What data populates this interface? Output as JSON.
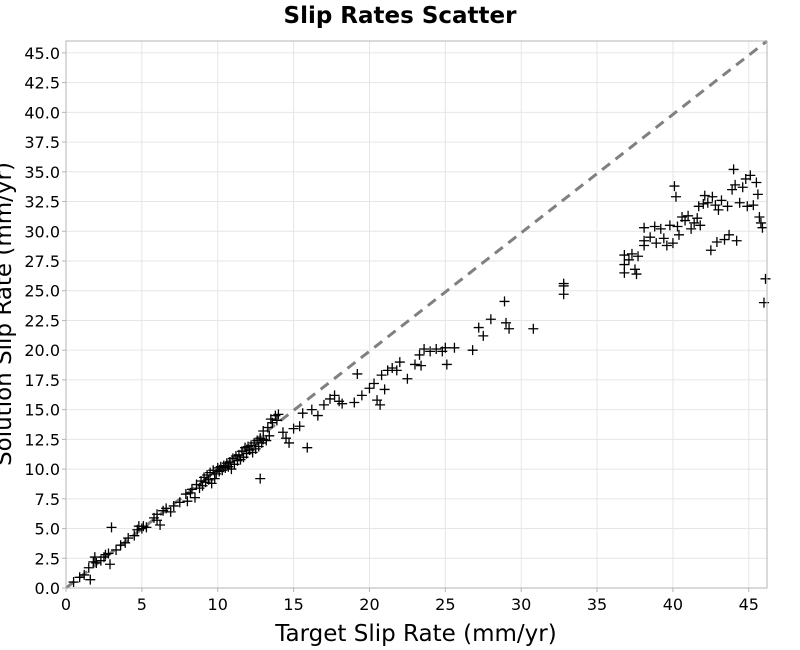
{
  "chart_data": {
    "type": "scatter",
    "title": "Slip Rates Scatter",
    "xlabel": "Target Slip Rate (mm/yr)",
    "ylabel": "Solution Slip Rate (mm/yr)",
    "xlim": [
      0,
      46.2
    ],
    "ylim": [
      0,
      46
    ],
    "x_ticks": [
      "0",
      "5",
      "10",
      "15",
      "20",
      "25",
      "30",
      "35",
      "40",
      "45"
    ],
    "y_ticks": [
      "0.0",
      "2.5",
      "5.0",
      "7.5",
      "10.0",
      "12.5",
      "15.0",
      "17.5",
      "20.0",
      "22.5",
      "25.0",
      "27.5",
      "30.0",
      "32.5",
      "35.0",
      "37.5",
      "40.0",
      "42.5",
      "45.0"
    ],
    "grid": true,
    "marker": "plus",
    "reference_line": {
      "style": "dashed",
      "color": "#808080",
      "from": [
        0,
        0
      ],
      "to": [
        46.2,
        46
      ]
    },
    "points": [
      [
        0.5,
        0.5
      ],
      [
        0.9,
        0.9
      ],
      [
        1.2,
        1.1
      ],
      [
        1.5,
        1.7
      ],
      [
        1.6,
        0.7
      ],
      [
        1.8,
        2.2
      ],
      [
        1.9,
        2.6
      ],
      [
        2.0,
        2.1
      ],
      [
        2.3,
        2.3
      ],
      [
        2.5,
        2.6
      ],
      [
        2.6,
        2.8
      ],
      [
        2.8,
        2.9
      ],
      [
        2.9,
        2.0
      ],
      [
        3.0,
        5.1
      ],
      [
        3.3,
        3.2
      ],
      [
        3.6,
        3.6
      ],
      [
        3.9,
        3.8
      ],
      [
        4.1,
        4.2
      ],
      [
        4.5,
        4.4
      ],
      [
        4.7,
        4.9
      ],
      [
        4.8,
        5.2
      ],
      [
        5.0,
        5.0
      ],
      [
        5.1,
        5.2
      ],
      [
        5.3,
        5.1
      ],
      [
        5.8,
        5.9
      ],
      [
        6.0,
        6.2
      ],
      [
        6.0,
        5.7
      ],
      [
        6.2,
        5.3
      ],
      [
        6.4,
        6.5
      ],
      [
        6.6,
        6.7
      ],
      [
        6.9,
        6.4
      ],
      [
        7.1,
        6.9
      ],
      [
        7.5,
        7.2
      ],
      [
        7.9,
        7.9
      ],
      [
        8.0,
        7.3
      ],
      [
        8.2,
        8.0
      ],
      [
        8.3,
        8.3
      ],
      [
        8.5,
        7.6
      ],
      [
        8.6,
        8.7
      ],
      [
        8.8,
        8.4
      ],
      [
        8.9,
        9.0
      ],
      [
        9.0,
        8.6
      ],
      [
        9.1,
        9.3
      ],
      [
        9.2,
        8.9
      ],
      [
        9.3,
        9.5
      ],
      [
        9.4,
        9.1
      ],
      [
        9.5,
        9.7
      ],
      [
        9.6,
        8.8
      ],
      [
        9.7,
        9.9
      ],
      [
        9.8,
        9.2
      ],
      [
        9.9,
        9.6
      ],
      [
        10.0,
        10.1
      ],
      [
        10.1,
        9.8
      ],
      [
        10.2,
        10.2
      ],
      [
        10.3,
        9.9
      ],
      [
        10.4,
        10.3
      ],
      [
        10.5,
        10.1
      ],
      [
        10.6,
        10.5
      ],
      [
        10.7,
        10.2
      ],
      [
        10.8,
        10.6
      ],
      [
        10.9,
        10.0
      ],
      [
        11.0,
        10.9
      ],
      [
        11.1,
        10.4
      ],
      [
        11.2,
        11.1
      ],
      [
        11.3,
        10.7
      ],
      [
        11.4,
        11.2
      ],
      [
        11.5,
        10.8
      ],
      [
        11.6,
        11.5
      ],
      [
        11.7,
        11.0
      ],
      [
        11.8,
        11.8
      ],
      [
        11.9,
        11.3
      ],
      [
        12.0,
        11.9
      ],
      [
        12.1,
        11.6
      ],
      [
        12.2,
        12.0
      ],
      [
        12.3,
        11.4
      ],
      [
        12.4,
        12.2
      ],
      [
        12.5,
        11.7
      ],
      [
        12.6,
        12.4
      ],
      [
        12.7,
        11.9
      ],
      [
        12.8,
        12.6
      ],
      [
        12.9,
        12.2
      ],
      [
        13.0,
        12.5
      ],
      [
        12.8,
        9.2
      ],
      [
        13.0,
        13.2
      ],
      [
        13.2,
        12.4
      ],
      [
        13.3,
        13.5
      ],
      [
        13.4,
        12.8
      ],
      [
        13.5,
        14.2
      ],
      [
        13.6,
        13.9
      ],
      [
        13.8,
        14.5
      ],
      [
        13.9,
        14.1
      ],
      [
        14.0,
        14.6
      ],
      [
        14.3,
        13.1
      ],
      [
        14.5,
        12.6
      ],
      [
        14.7,
        12.2
      ],
      [
        15.0,
        13.4
      ],
      [
        15.4,
        13.6
      ],
      [
        15.6,
        14.7
      ],
      [
        15.9,
        11.8
      ],
      [
        16.2,
        15.0
      ],
      [
        16.6,
        14.5
      ],
      [
        17.0,
        15.4
      ],
      [
        17.4,
        15.9
      ],
      [
        17.7,
        16.2
      ],
      [
        18.0,
        15.7
      ],
      [
        18.2,
        15.5
      ],
      [
        19.0,
        15.6
      ],
      [
        19.2,
        18.0
      ],
      [
        19.5,
        16.2
      ],
      [
        20.0,
        16.8
      ],
      [
        20.3,
        17.2
      ],
      [
        20.5,
        15.8
      ],
      [
        20.7,
        15.4
      ],
      [
        20.8,
        17.9
      ],
      [
        21.0,
        16.7
      ],
      [
        21.2,
        18.3
      ],
      [
        21.5,
        18.5
      ],
      [
        21.8,
        18.3
      ],
      [
        22.0,
        19.0
      ],
      [
        22.5,
        17.6
      ],
      [
        23.0,
        18.8
      ],
      [
        23.3,
        19.6
      ],
      [
        23.4,
        18.7
      ],
      [
        23.6,
        20.1
      ],
      [
        24.0,
        19.9
      ],
      [
        24.4,
        20.1
      ],
      [
        24.8,
        19.9
      ],
      [
        25.0,
        20.2
      ],
      [
        25.1,
        18.8
      ],
      [
        25.6,
        20.2
      ],
      [
        26.8,
        20.0
      ],
      [
        27.2,
        21.9
      ],
      [
        27.5,
        21.2
      ],
      [
        28.0,
        22.6
      ],
      [
        28.9,
        24.1
      ],
      [
        29.0,
        22.3
      ],
      [
        29.2,
        21.8
      ],
      [
        30.8,
        21.8
      ],
      [
        32.8,
        25.4
      ],
      [
        32.8,
        24.7
      ],
      [
        32.8,
        25.6
      ],
      [
        36.8,
        27.2
      ],
      [
        36.8,
        28.0
      ],
      [
        36.8,
        26.5
      ],
      [
        37.1,
        27.6
      ],
      [
        37.3,
        28.1
      ],
      [
        37.5,
        26.8
      ],
      [
        37.7,
        27.9
      ],
      [
        37.6,
        26.4
      ],
      [
        38.1,
        29.2
      ],
      [
        38.1,
        30.3
      ],
      [
        38.1,
        28.8
      ],
      [
        38.5,
        29.5
      ],
      [
        38.8,
        30.4
      ],
      [
        38.9,
        29.0
      ],
      [
        39.2,
        30.2
      ],
      [
        39.4,
        29.4
      ],
      [
        39.6,
        28.8
      ],
      [
        39.8,
        30.5
      ],
      [
        40.0,
        29.0
      ],
      [
        40.1,
        33.8
      ],
      [
        40.2,
        32.9
      ],
      [
        40.3,
        30.4
      ],
      [
        40.4,
        29.7
      ],
      [
        40.6,
        31.2
      ],
      [
        40.8,
        30.9
      ],
      [
        41.0,
        31.3
      ],
      [
        41.2,
        30.2
      ],
      [
        41.4,
        30.7
      ],
      [
        41.6,
        31.1
      ],
      [
        41.8,
        30.5
      ],
      [
        41.7,
        32.1
      ],
      [
        42.0,
        32.3
      ],
      [
        42.1,
        33.0
      ],
      [
        42.3,
        32.4
      ],
      [
        42.5,
        28.4
      ],
      [
        42.6,
        32.9
      ],
      [
        42.8,
        32.2
      ],
      [
        42.9,
        29.1
      ],
      [
        43.0,
        31.8
      ],
      [
        43.2,
        32.6
      ],
      [
        43.4,
        29.3
      ],
      [
        43.6,
        32.1
      ],
      [
        43.7,
        29.7
      ],
      [
        43.9,
        33.5
      ],
      [
        44.0,
        35.2
      ],
      [
        44.1,
        33.9
      ],
      [
        44.2,
        29.2
      ],
      [
        44.4,
        32.4
      ],
      [
        44.6,
        33.7
      ],
      [
        44.8,
        34.4
      ],
      [
        44.9,
        32.1
      ],
      [
        45.1,
        34.7
      ],
      [
        45.3,
        32.2
      ],
      [
        45.5,
        34.1
      ],
      [
        45.6,
        33.1
      ],
      [
        45.7,
        31.2
      ],
      [
        45.8,
        30.7
      ],
      [
        45.9,
        30.3
      ],
      [
        46.1,
        26.0
      ],
      [
        46.0,
        24.0
      ]
    ]
  }
}
